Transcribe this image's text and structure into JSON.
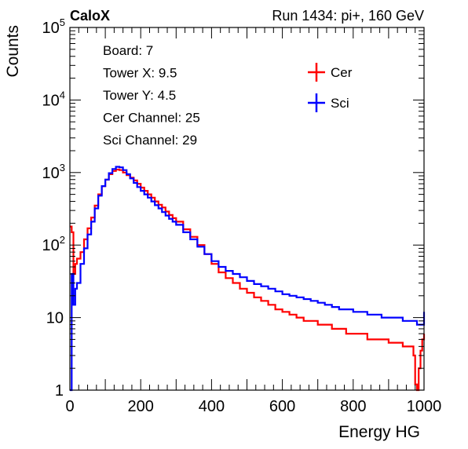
{
  "chart_data": {
    "type": "line",
    "title_left": "CaloX",
    "title_right": "Run 1434: pi+, 160 GeV",
    "xlabel": "Energy HG",
    "ylabel": "Counts",
    "xlim": [
      0,
      1000
    ],
    "ylim": [
      1,
      100000
    ],
    "yscale": "log",
    "grid": false,
    "legend_position": "top-right",
    "xticks": [
      {
        "value": 0,
        "label": "0"
      },
      {
        "value": 200,
        "label": "200"
      },
      {
        "value": 400,
        "label": "400"
      },
      {
        "value": 600,
        "label": "600"
      },
      {
        "value": 800,
        "label": "800"
      },
      {
        "value": 1000,
        "label": "1000"
      }
    ],
    "yticks": [
      {
        "value": 1,
        "base": "1",
        "exp": ""
      },
      {
        "value": 10,
        "base": "10",
        "exp": ""
      },
      {
        "value": 100,
        "base": "10",
        "exp": "2"
      },
      {
        "value": 1000,
        "base": "10",
        "exp": "3"
      },
      {
        "value": 10000,
        "base": "10",
        "exp": "4"
      },
      {
        "value": 100000,
        "base": "10",
        "exp": "5"
      }
    ],
    "info_lines": [
      "Board: 7",
      "Tower X: 9.5",
      "Tower Y: 4.5",
      "Cer Channel: 25",
      "Sci Channel: 29"
    ],
    "series": [
      {
        "name": "Cer",
        "color": "#ff0000",
        "x": [
          0,
          5,
          10,
          15,
          20,
          30,
          40,
          50,
          60,
          70,
          80,
          90,
          100,
          110,
          120,
          130,
          140,
          150,
          160,
          170,
          180,
          190,
          200,
          210,
          220,
          230,
          240,
          250,
          260,
          270,
          280,
          290,
          300,
          320,
          340,
          360,
          380,
          400,
          420,
          440,
          460,
          480,
          500,
          520,
          540,
          560,
          580,
          600,
          620,
          640,
          660,
          680,
          700,
          720,
          740,
          760,
          780,
          800,
          820,
          840,
          860,
          880,
          900,
          920,
          940,
          960,
          970,
          975,
          980,
          985,
          990,
          995,
          1000
        ],
        "y": [
          180,
          150,
          40,
          55,
          65,
          80,
          120,
          170,
          240,
          350,
          500,
          650,
          800,
          950,
          1050,
          1100,
          1080,
          1000,
          920,
          850,
          780,
          700,
          620,
          560,
          500,
          450,
          400,
          360,
          330,
          290,
          260,
          235,
          210,
          165,
          130,
          100,
          75,
          55,
          42,
          35,
          30,
          25,
          22,
          19,
          17,
          15,
          13,
          12,
          11,
          10,
          9,
          9,
          8,
          8,
          7,
          7,
          6,
          6,
          6,
          5,
          5,
          5,
          4.5,
          4.5,
          4,
          4,
          3,
          1.2,
          1,
          2,
          3.5,
          5,
          6
        ]
      },
      {
        "name": "Sci",
        "color": "#0000ff",
        "x": [
          0,
          5,
          10,
          15,
          20,
          30,
          40,
          50,
          60,
          70,
          80,
          90,
          100,
          110,
          120,
          130,
          140,
          150,
          160,
          170,
          180,
          190,
          200,
          210,
          220,
          230,
          240,
          250,
          260,
          270,
          280,
          290,
          300,
          320,
          340,
          360,
          380,
          400,
          420,
          440,
          460,
          480,
          500,
          520,
          540,
          560,
          580,
          600,
          620,
          640,
          660,
          680,
          700,
          720,
          740,
          760,
          780,
          800,
          820,
          840,
          860,
          880,
          900,
          920,
          940,
          960,
          970,
          980,
          990,
          1000
        ],
        "y": [
          1,
          40,
          15,
          25,
          30,
          55,
          90,
          140,
          210,
          320,
          480,
          650,
          800,
          980,
          1120,
          1200,
          1180,
          1080,
          950,
          830,
          720,
          630,
          560,
          500,
          450,
          400,
          355,
          320,
          285,
          255,
          230,
          210,
          190,
          150,
          120,
          95,
          75,
          60,
          50,
          44,
          40,
          36,
          32,
          29,
          27,
          25,
          23,
          21,
          20,
          19,
          18,
          17,
          16,
          15,
          14,
          13,
          13,
          12,
          12,
          11,
          11,
          10,
          10,
          10,
          9,
          9,
          9,
          8,
          8,
          12
        ]
      }
    ]
  }
}
